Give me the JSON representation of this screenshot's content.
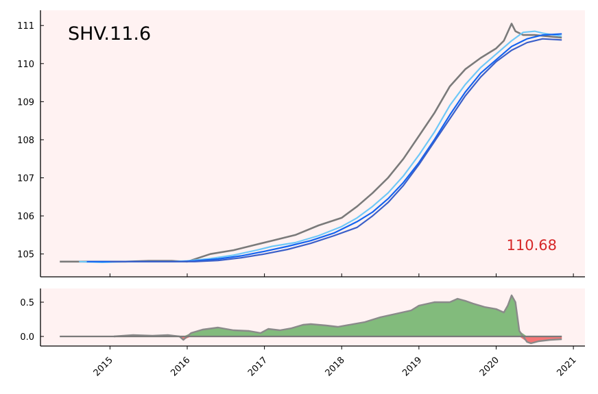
{
  "chart_data": [
    {
      "type": "line",
      "title": "SHV.11.6",
      "last_value_label": "110.68",
      "xlabel": "",
      "ylabel": "",
      "xlim": [
        2014.1,
        2021.15
      ],
      "ylim": [
        104.4,
        111.4
      ],
      "y_ticks": [
        105,
        106,
        107,
        108,
        109,
        110,
        111
      ],
      "x_ticks": [
        2015,
        2016,
        2017,
        2018,
        2019,
        2020,
        2021
      ],
      "grid": false,
      "background": "#fff2f2",
      "series": [
        {
          "color": "#7a7a7a",
          "x": [
            2014.35,
            2014.6,
            2014.9,
            2015.2,
            2015.5,
            2015.8,
            2016.0,
            2016.3,
            2016.6,
            2016.9,
            2017.1,
            2017.4,
            2017.7,
            2018.0,
            2018.2,
            2018.4,
            2018.6,
            2018.8,
            2019.0,
            2019.2,
            2019.4,
            2019.6,
            2019.8,
            2020.0,
            2020.1,
            2020.2,
            2020.25,
            2020.35,
            2020.5,
            2020.65,
            2020.85
          ],
          "y": [
            104.8,
            104.8,
            104.8,
            104.8,
            104.82,
            104.82,
            104.8,
            105.0,
            105.1,
            105.25,
            105.35,
            105.5,
            105.75,
            105.95,
            106.25,
            106.6,
            107.0,
            107.5,
            108.1,
            108.7,
            109.4,
            109.85,
            110.15,
            110.4,
            110.6,
            111.05,
            110.85,
            110.75,
            110.75,
            110.72,
            110.68
          ]
        },
        {
          "color": "#6ec8f8",
          "x": [
            2014.6,
            2014.9,
            2015.2,
            2015.5,
            2015.8,
            2016.0,
            2016.3,
            2016.6,
            2016.9,
            2017.1,
            2017.4,
            2017.7,
            2018.0,
            2018.2,
            2018.4,
            2018.6,
            2018.8,
            2019.0,
            2019.2,
            2019.4,
            2019.6,
            2019.8,
            2020.0,
            2020.2,
            2020.35,
            2020.5,
            2020.6,
            2020.75,
            2020.85
          ],
          "y": [
            104.8,
            104.78,
            104.8,
            104.8,
            104.8,
            104.82,
            104.88,
            104.97,
            105.1,
            105.2,
            105.3,
            105.48,
            105.72,
            105.95,
            106.25,
            106.6,
            107.05,
            107.6,
            108.2,
            108.9,
            109.45,
            109.9,
            110.25,
            110.6,
            110.82,
            110.85,
            110.8,
            110.75,
            110.72
          ]
        },
        {
          "color": "#1464f0",
          "x": [
            2014.7,
            2015.0,
            2015.3,
            2015.6,
            2015.9,
            2016.1,
            2016.4,
            2016.7,
            2017.0,
            2017.3,
            2017.6,
            2017.9,
            2018.2,
            2018.4,
            2018.6,
            2018.8,
            2019.0,
            2019.2,
            2019.4,
            2019.6,
            2019.8,
            2020.0,
            2020.2,
            2020.4,
            2020.6,
            2020.85
          ],
          "y": [
            104.8,
            104.8,
            104.8,
            104.8,
            104.8,
            104.82,
            104.87,
            104.95,
            105.07,
            105.2,
            105.35,
            105.55,
            105.85,
            106.1,
            106.45,
            106.88,
            107.4,
            108.0,
            108.65,
            109.25,
            109.75,
            110.1,
            110.45,
            110.65,
            110.75,
            110.78
          ]
        },
        {
          "color": "#3b5fc8",
          "x": [
            2015.0,
            2015.3,
            2015.6,
            2015.9,
            2016.1,
            2016.4,
            2016.7,
            2017.0,
            2017.3,
            2017.6,
            2017.9,
            2018.2,
            2018.4,
            2018.6,
            2018.8,
            2019.0,
            2019.2,
            2019.4,
            2019.6,
            2019.8,
            2020.0,
            2020.2,
            2020.4,
            2020.6,
            2020.85
          ],
          "y": [
            104.8,
            104.8,
            104.8,
            104.8,
            104.8,
            104.83,
            104.9,
            105.0,
            105.12,
            105.28,
            105.48,
            105.7,
            106.0,
            106.35,
            106.8,
            107.35,
            107.95,
            108.55,
            109.15,
            109.65,
            110.05,
            110.35,
            110.55,
            110.65,
            110.62
          ]
        }
      ]
    },
    {
      "type": "area",
      "xlabel": "",
      "ylabel": "",
      "xlim": [
        2014.1,
        2021.15
      ],
      "ylim": [
        -0.14,
        0.7
      ],
      "y_ticks": [
        0.0,
        0.5
      ],
      "y_tick_labels": [
        "0.0",
        "0.5"
      ],
      "x_ticks": [
        2015,
        2016,
        2017,
        2018,
        2019,
        2020,
        2021
      ],
      "grid": false,
      "positive_color": "#82bb7c",
      "negative_color": "#f47777",
      "outline_color": "#8a8a8a",
      "zero_line": [
        2014.35,
        2020.85
      ],
      "x": [
        2015.05,
        2015.3,
        2015.55,
        2015.75,
        2015.9,
        2015.95,
        2016.05,
        2016.2,
        2016.4,
        2016.6,
        2016.8,
        2016.95,
        2017.05,
        2017.2,
        2017.35,
        2017.5,
        2017.6,
        2017.8,
        2017.95,
        2018.1,
        2018.3,
        2018.5,
        2018.7,
        2018.9,
        2019.0,
        2019.2,
        2019.4,
        2019.5,
        2019.6,
        2019.7,
        2019.85,
        2020.0,
        2020.1,
        2020.15,
        2020.2,
        2020.25,
        2020.3,
        2020.4,
        2020.45,
        2020.55,
        2020.7,
        2020.85
      ],
      "values": [
        0.0,
        0.02,
        0.01,
        0.02,
        0.0,
        -0.05,
        0.05,
        0.1,
        0.13,
        0.09,
        0.08,
        0.05,
        0.11,
        0.09,
        0.12,
        0.17,
        0.18,
        0.16,
        0.14,
        0.17,
        0.21,
        0.28,
        0.33,
        0.38,
        0.45,
        0.5,
        0.5,
        0.55,
        0.52,
        0.48,
        0.43,
        0.4,
        0.35,
        0.45,
        0.6,
        0.5,
        0.08,
        -0.08,
        -0.1,
        -0.07,
        -0.05,
        -0.04
      ]
    }
  ]
}
